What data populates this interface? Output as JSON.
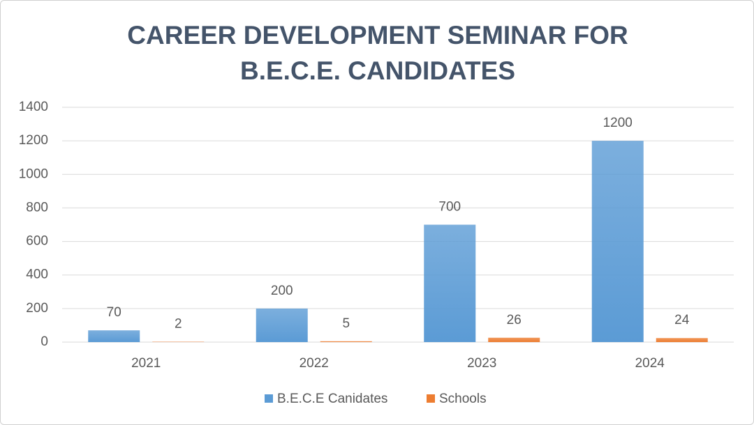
{
  "chart_data": {
    "type": "bar",
    "title": "CAREER DEVELOPMENT SEMINAR FOR B.E.C.E. CANDIDATES",
    "categories": [
      "2021",
      "2022",
      "2023",
      "2024"
    ],
    "series": [
      {
        "name": "B.E.C.E Canidates",
        "color": "#5b9bd5",
        "values": [
          70,
          200,
          700,
          1200
        ]
      },
      {
        "name": "Schools",
        "color": "#ed7d31",
        "values": [
          2,
          5,
          26,
          24
        ]
      }
    ],
    "ylim": [
      0,
      1400
    ],
    "yticks": [
      0,
      200,
      400,
      600,
      800,
      1000,
      1200,
      1400
    ],
    "grid": true,
    "legend": "bottom",
    "data_labels": true
  }
}
